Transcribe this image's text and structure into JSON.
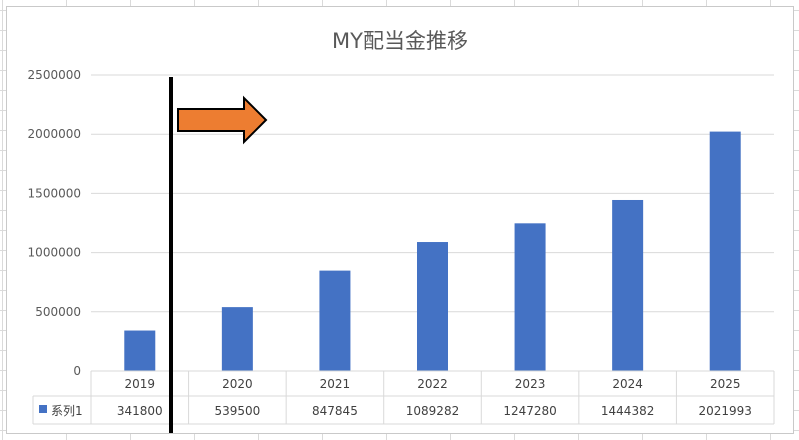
{
  "chart_data": {
    "type": "bar",
    "title": "MY配当金推移",
    "categories": [
      "2019",
      "2020",
      "2021",
      "2022",
      "2023",
      "2024",
      "2025"
    ],
    "series": [
      {
        "name": "系列1",
        "values": [
          341800,
          539500,
          847845,
          1089282,
          1247280,
          1444382,
          2021993
        ],
        "color": "#4472c4"
      }
    ],
    "ylim": [
      0,
      2500000
    ],
    "yticks": [
      "0",
      "500000",
      "1000000",
      "1500000",
      "2000000",
      "2500000"
    ],
    "grid": true,
    "legend": "data-table",
    "annotations": {
      "marker_line_color": "#000000",
      "arrow_fill": "#ed7d31",
      "arrow_stroke": "#000000"
    }
  }
}
